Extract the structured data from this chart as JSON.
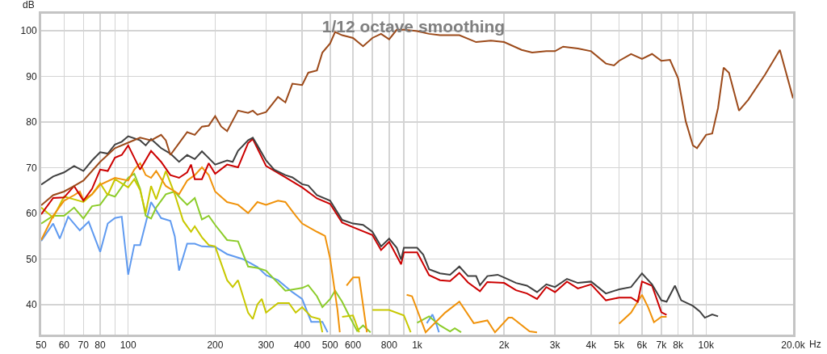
{
  "chart_data": {
    "type": "line",
    "title": "1/12 octave smoothing",
    "xlabel": "Hz",
    "ylabel": "dB",
    "log": "x",
    "grid": true,
    "xlim": [
      50,
      20000
    ],
    "ylim": [
      33.5,
      103.7
    ],
    "xticks": [
      50,
      60,
      70,
      80,
      {
        "value": 90,
        "label": null
      },
      100,
      200,
      300,
      400,
      500,
      600,
      {
        "value": 700,
        "label": null
      },
      800,
      {
        "value": 900,
        "label": null
      },
      {
        "value": 1000,
        "label": "1k"
      },
      {
        "value": 2000,
        "label": "2k"
      },
      {
        "value": 3000,
        "label": "3k"
      },
      {
        "value": 4000,
        "label": "4k"
      },
      {
        "value": 5000,
        "label": "5k"
      },
      {
        "value": 6000,
        "label": "6k"
      },
      {
        "value": 7000,
        "label": "7k"
      },
      {
        "value": 8000,
        "label": "8k"
      },
      {
        "value": 9000,
        "label": null
      },
      {
        "value": 10000,
        "label": "10k"
      },
      {
        "value": 20000,
        "label": "20.0k"
      }
    ],
    "yticks": [
      40,
      50,
      60,
      70,
      80,
      90,
      100
    ],
    "series": [
      {
        "color": "#5f9af0",
        "x": [
          50,
          55,
          58,
          62,
          68,
          73,
          80,
          85,
          90,
          95,
          100,
          105,
          110,
          120,
          130,
          140,
          145,
          150,
          160,
          170,
          180,
          200,
          220,
          250,
          280,
          300,
          330,
          370,
          400,
          430,
          470,
          490,
          1030,
          1080,
          1130,
          1170,
          1190
        ],
        "values": [
          54.0,
          57.8,
          54.5,
          59.3,
          56.3,
          58.2,
          51.6,
          57.8,
          59.0,
          59.3,
          46.6,
          53.1,
          53.1,
          62.5,
          59.0,
          58.4,
          55.0,
          47.5,
          53.4,
          53.4,
          52.8,
          52.7,
          51.1,
          50.0,
          48.3,
          46.5,
          45.4,
          42.8,
          41.3,
          36.3,
          36.3,
          34.0,
          null,
          36.0,
          37.9,
          35.5,
          34.0
        ]
      },
      {
        "color": "#8ccc2a",
        "x": [
          50,
          55,
          60,
          65,
          70,
          75,
          80,
          85,
          90,
          100,
          105,
          110,
          115,
          120,
          125,
          135,
          145,
          150,
          160,
          170,
          180,
          190,
          200,
          220,
          240,
          260,
          280,
          300,
          350,
          400,
          420,
          450,
          470,
          500,
          520,
          550,
          580,
          620,
          650,
          690,
          960,
          1000,
          1100,
          1200,
          1300,
          1350,
          1420
        ],
        "values": [
          57.8,
          59.5,
          59.5,
          61.3,
          58.9,
          61.6,
          61.9,
          64.2,
          63.7,
          67.8,
          68.7,
          65.4,
          59.5,
          58.9,
          61.3,
          64.2,
          64.8,
          63.7,
          61.9,
          63.4,
          58.7,
          59.5,
          57.5,
          54.2,
          53.9,
          48.4,
          48.1,
          47.5,
          43.1,
          43.7,
          44.3,
          41.9,
          39.5,
          41.3,
          43.1,
          40.7,
          37.8,
          34.3,
          35.5,
          34.0,
          null,
          36.1,
          37.5,
          35.5,
          34.2,
          34.9,
          34.0
        ]
      },
      {
        "color": "#c8c800",
        "x": [
          50,
          55,
          60,
          65,
          70,
          75,
          80,
          85,
          90,
          95,
          100,
          105,
          110,
          115,
          120,
          125,
          135,
          145,
          155,
          165,
          170,
          180,
          190,
          200,
          220,
          230,
          240,
          260,
          270,
          280,
          290,
          300,
          330,
          360,
          380,
          400,
          430,
          460,
          470,
          520,
          550,
          600,
          630,
          680,
          700,
          800,
          900,
          950
        ],
        "values": [
          61.3,
          59.1,
          63.7,
          63.1,
          62.5,
          64.2,
          66.6,
          64.0,
          67.5,
          66.6,
          65.7,
          67.5,
          65.1,
          60.1,
          66.0,
          63.1,
          69.3,
          64.2,
          58.4,
          56.0,
          57.2,
          54.8,
          53.1,
          52.8,
          45.4,
          43.9,
          45.4,
          38.3,
          36.9,
          40.1,
          41.3,
          38.3,
          40.4,
          40.4,
          38.3,
          39.5,
          37.4,
          36.9,
          34.0,
          null,
          37.4,
          37.7,
          34.0,
          null,
          38.9,
          38.9,
          37.7,
          34.0
        ]
      },
      {
        "color": "#f0920a",
        "x": [
          50,
          55,
          60,
          65,
          68,
          70,
          75,
          80,
          90,
          100,
          105,
          110,
          115,
          120,
          125,
          135,
          145,
          150,
          160,
          170,
          180,
          190,
          200,
          220,
          240,
          260,
          280,
          300,
          330,
          350,
          380,
          400,
          450,
          480,
          500,
          530,
          540,
          550,
          570,
          600,
          630,
          670,
          790,
          920,
          960,
          1070,
          1250,
          1400,
          1570,
          1750,
          1860,
          2070,
          2130,
          2450,
          2600,
          4400,
          5000,
          5500,
          6000,
          6300,
          6600,
          7000,
          7300
        ],
        "values": [
          54.2,
          59.5,
          62.8,
          64.0,
          64.8,
          63.0,
          64.2,
          66.3,
          67.8,
          67.2,
          69.6,
          71.0,
          68.4,
          67.8,
          69.3,
          66.0,
          64.8,
          64.2,
          67.2,
          68.4,
          70.1,
          68.4,
          64.8,
          62.5,
          61.9,
          60.1,
          62.5,
          61.9,
          62.8,
          62.5,
          59.5,
          57.8,
          56.0,
          55.1,
          50.1,
          38.9,
          34.0,
          null,
          44.2,
          46.0,
          46.0,
          34.0,
          null,
          42.2,
          41.9,
          34.0,
          38.3,
          40.7,
          36.0,
          36.6,
          34.0,
          37.2,
          37.2,
          34.2,
          34.0,
          null,
          35.9,
          38.3,
          42.2,
          39.5,
          36.2,
          37.4,
          37.4
        ]
      },
      {
        "color": "#cc0000",
        "x": [
          50,
          55,
          60,
          65,
          70,
          75,
          80,
          85,
          90,
          95,
          100,
          110,
          120,
          130,
          140,
          150,
          160,
          165,
          170,
          180,
          190,
          200,
          220,
          240,
          260,
          270,
          300,
          350,
          400,
          450,
          500,
          550,
          600,
          700,
          750,
          800,
          880,
          900,
          1000,
          1100,
          1200,
          1300,
          1400,
          1500,
          1650,
          1750,
          2000,
          2200,
          2400,
          2600,
          2800,
          3000,
          3300,
          3600,
          4000,
          4500,
          5000,
          5500,
          5800,
          6000,
          6500,
          7000,
          7300
        ],
        "values": [
          59.8,
          63.4,
          63.5,
          66.0,
          62.8,
          65.4,
          69.6,
          69.3,
          72.2,
          72.8,
          74.9,
          69.6,
          73.7,
          71.3,
          68.4,
          67.8,
          69.0,
          70.7,
          67.5,
          67.5,
          71.0,
          68.7,
          70.7,
          70.1,
          75.4,
          76.3,
          70.4,
          67.9,
          65.7,
          63.3,
          62.1,
          58.0,
          57.0,
          55.3,
          52.0,
          53.8,
          48.9,
          51.5,
          51.5,
          46.5,
          45.4,
          45.2,
          47.0,
          44.9,
          43.0,
          45.0,
          44.8,
          43.2,
          42.5,
          41.3,
          43.9,
          42.8,
          45.1,
          43.6,
          44.5,
          41.0,
          41.6,
          41.6,
          40.7,
          45.1,
          44.2,
          38.4,
          37.8
        ]
      },
      {
        "color": "#404040",
        "x": [
          50,
          55,
          60,
          65,
          70,
          75,
          80,
          85,
          90,
          95,
          100,
          110,
          115,
          120,
          130,
          140,
          150,
          160,
          170,
          180,
          200,
          220,
          230,
          240,
          260,
          270,
          280,
          300,
          320,
          350,
          370,
          400,
          420,
          450,
          500,
          550,
          600,
          650,
          700,
          750,
          800,
          850,
          880,
          900,
          1000,
          1050,
          1100,
          1200,
          1300,
          1400,
          1500,
          1600,
          1650,
          1750,
          1900,
          2000,
          2200,
          2400,
          2600,
          2800,
          3000,
          3300,
          3600,
          4000,
          4500,
          5000,
          5500,
          6000,
          6500,
          7000,
          7300,
          7800,
          8200,
          9000,
          9500,
          9900,
          10500,
          11000
        ],
        "values": [
          66.3,
          68.1,
          69.0,
          70.4,
          69.3,
          71.6,
          73.4,
          73.1,
          75.1,
          75.7,
          76.9,
          76.0,
          74.9,
          76.3,
          74.3,
          73.1,
          71.3,
          72.8,
          71.9,
          73.6,
          70.7,
          71.6,
          71.3,
          73.7,
          76.0,
          76.6,
          74.9,
          71.6,
          69.6,
          68.4,
          67.9,
          66.4,
          66.1,
          64.0,
          62.8,
          58.6,
          57.8,
          57.5,
          56.0,
          52.8,
          54.5,
          52.5,
          49.9,
          52.5,
          52.5,
          51.0,
          47.8,
          46.9,
          46.6,
          48.4,
          46.3,
          46.3,
          44.3,
          46.3,
          46.6,
          46.0,
          44.8,
          44.2,
          42.8,
          44.5,
          43.9,
          45.7,
          44.8,
          45.1,
          42.5,
          43.4,
          43.9,
          46.9,
          44.5,
          41.0,
          40.7,
          44.2,
          41.0,
          39.8,
          38.6,
          37.2,
          37.9,
          37.5
        ]
      },
      {
        "color": "#9c4a1a",
        "x": [
          50,
          55,
          60,
          65,
          70,
          80,
          90,
          100,
          110,
          120,
          130,
          135,
          140,
          150,
          160,
          170,
          180,
          190,
          200,
          210,
          220,
          240,
          260,
          270,
          280,
          300,
          330,
          350,
          370,
          400,
          420,
          450,
          470,
          500,
          520,
          550,
          600,
          650,
          700,
          750,
          800,
          850,
          900,
          1000,
          1100,
          1200,
          1400,
          1600,
          1800,
          2000,
          2300,
          2500,
          2800,
          3000,
          3200,
          3600,
          4000,
          4500,
          4800,
          5000,
          5500,
          6000,
          6500,
          7000,
          7500,
          8000,
          8500,
          9000,
          9300,
          10000,
          10500,
          11000,
          11500,
          12000,
          13000,
          14000,
          16000,
          18000,
          20000
        ],
        "values": [
          61.8,
          64.0,
          64.8,
          66.0,
          67.2,
          71.3,
          74.3,
          75.5,
          76.6,
          76.0,
          77.2,
          76.0,
          72.8,
          75.4,
          77.8,
          77.2,
          79.0,
          79.2,
          81.3,
          79.0,
          78.0,
          82.5,
          82.0,
          82.5,
          81.6,
          82.2,
          85.5,
          84.3,
          88.4,
          88.1,
          90.8,
          91.3,
          95.2,
          97.2,
          99.7,
          99.0,
          98.4,
          96.6,
          98.4,
          99.3,
          98.1,
          100.2,
          100.2,
          99.9,
          99.3,
          99.0,
          99.0,
          97.5,
          97.8,
          97.5,
          95.8,
          95.2,
          95.5,
          95.5,
          96.5,
          96.1,
          95.5,
          92.8,
          92.4,
          93.4,
          94.9,
          93.8,
          94.9,
          93.4,
          93.6,
          89.6,
          80.2,
          74.9,
          74.3,
          77.2,
          77.5,
          83.1,
          91.9,
          90.8,
          82.5,
          84.9,
          90.4,
          95.8,
          85.2
        ]
      }
    ]
  }
}
